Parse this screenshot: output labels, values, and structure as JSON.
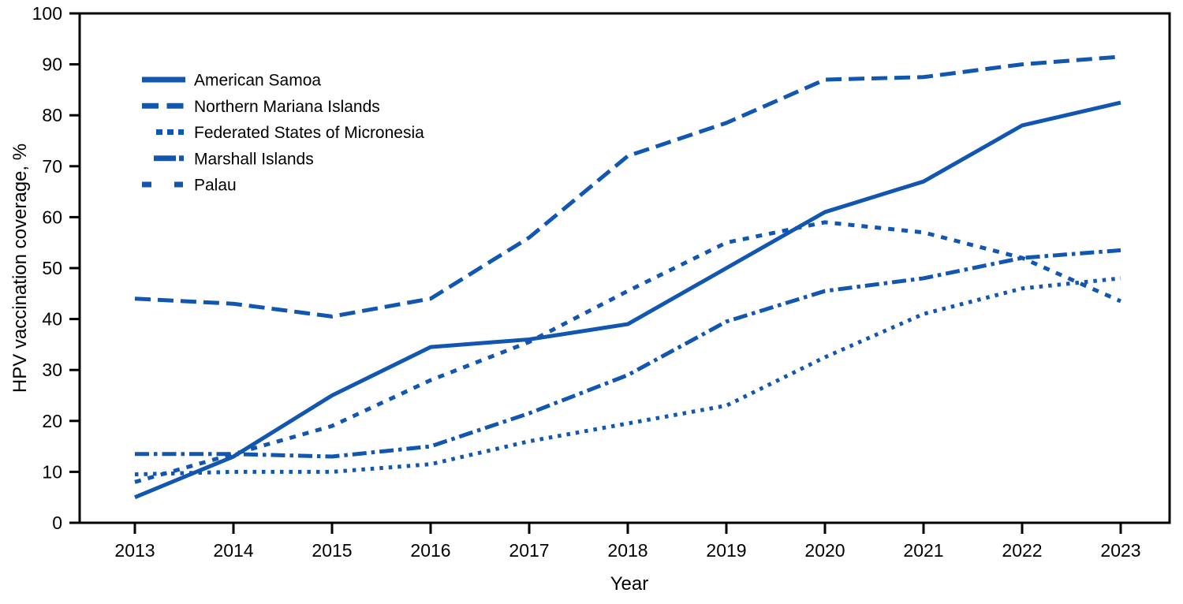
{
  "chart_data": {
    "type": "line",
    "title": "",
    "xlabel": "Year",
    "ylabel": "HPV vaccination coverage, %",
    "x": [
      2013,
      2014,
      2015,
      2016,
      2017,
      2018,
      2019,
      2020,
      2021,
      2022,
      2023
    ],
    "yticks": [
      0,
      10,
      20,
      30,
      40,
      50,
      60,
      70,
      80,
      90,
      100
    ],
    "ylim": [
      0,
      100
    ],
    "grid": false,
    "legend_position": "upper-left-inside",
    "line_color": "#1156b0",
    "axis_color": "#000000",
    "series": [
      {
        "name": "American Samoa",
        "style": "solid",
        "values": [
          5,
          13,
          25,
          34.5,
          36,
          39,
          50,
          61,
          67,
          78,
          82.5
        ]
      },
      {
        "name": "Northern Mariana Islands",
        "style": "long-dash",
        "values": [
          44,
          43,
          40.5,
          44,
          56,
          72,
          78.5,
          87,
          87.5,
          90,
          91.5
        ]
      },
      {
        "name": "Federated States of Micronesia",
        "style": "dot",
        "values": [
          9.5,
          10,
          10,
          11.5,
          16,
          19.5,
          23,
          32.5,
          41,
          46,
          48
        ]
      },
      {
        "name": "Marshall Islands",
        "style": "dash-dot",
        "values": [
          13.5,
          13.5,
          13,
          15,
          21.5,
          29,
          39.5,
          45.5,
          48,
          52,
          53.5
        ]
      },
      {
        "name": "Palau",
        "style": "medium-dash",
        "values": [
          8,
          13.5,
          19,
          28,
          35.5,
          45.5,
          55,
          59,
          57,
          52,
          43.5
        ]
      }
    ]
  }
}
